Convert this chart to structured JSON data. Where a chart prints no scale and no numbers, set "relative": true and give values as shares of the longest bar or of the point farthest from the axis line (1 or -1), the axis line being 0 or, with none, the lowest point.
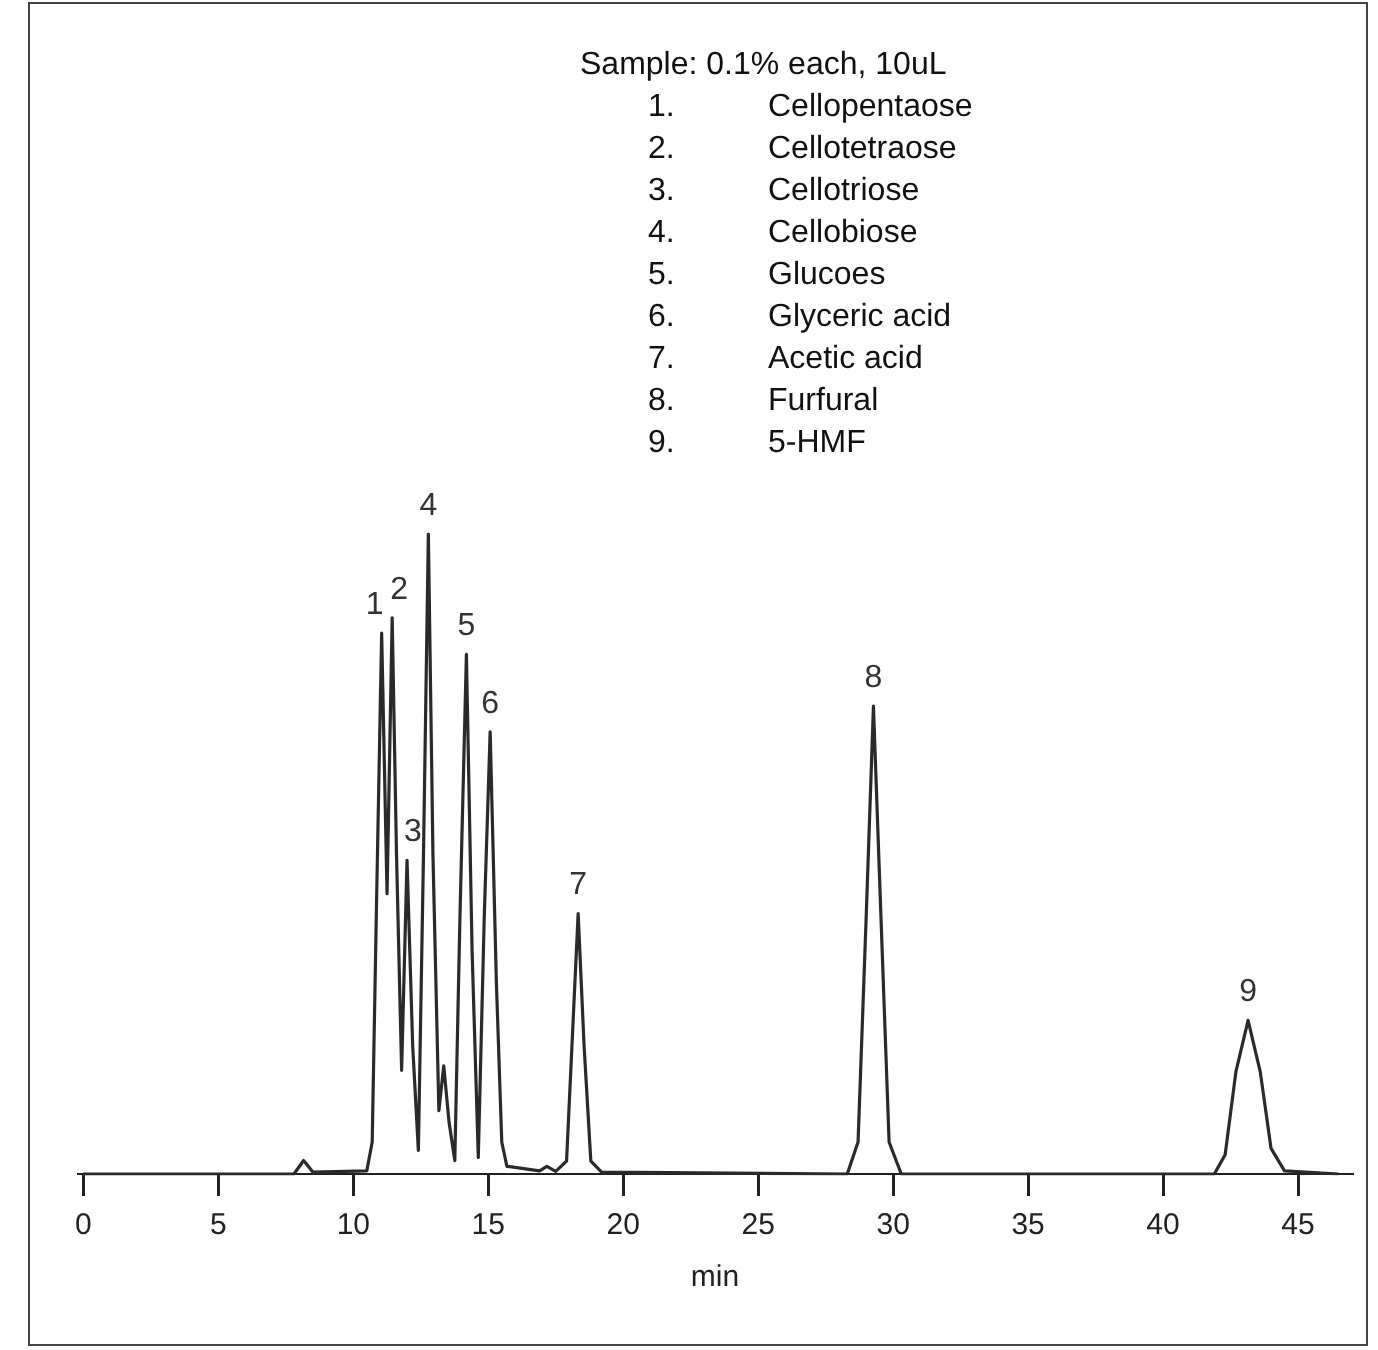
{
  "chart_data": {
    "type": "line",
    "xlabel": "min",
    "relative": true,
    "legend": false,
    "grid": false,
    "tick_labels": "x",
    "marker": "none",
    "line_style": "solid",
    "xlim": [
      -0.2,
      47
    ],
    "xticks": [
      0,
      5,
      10,
      15,
      20,
      25,
      30,
      35,
      40,
      45
    ],
    "series": [
      {
        "color": "#2a2a2a",
        "x": [
          0,
          7.8,
          8.16,
          8.5,
          10.5,
          10.7,
          10.85,
          11.05,
          11.25,
          11.44,
          11.6,
          11.79,
          11.99,
          12.2,
          12.41,
          12.6,
          12.78,
          12.95,
          13.17,
          13.35,
          13.55,
          13.76,
          13.95,
          14.19,
          14.4,
          14.63,
          14.85,
          15.07,
          15.3,
          15.5,
          15.69,
          16.9,
          17.17,
          17.5,
          17.9,
          18.1,
          18.33,
          18.55,
          18.8,
          19.2,
          28.3,
          28.7,
          29.0,
          29.27,
          29.55,
          29.85,
          30.3,
          41.9,
          42.3,
          42.7,
          43.15,
          43.6,
          44.0,
          44.5,
          46.5
        ],
        "values": [
          0,
          0,
          0.021,
          0.003,
          0.005,
          0.05,
          0.4,
          0.845,
          0.438,
          0.869,
          0.5,
          0.162,
          0.49,
          0.2,
          0.037,
          0.5,
          1,
          0.5,
          0.099,
          0.169,
          0.08,
          0.021,
          0.4,
          0.812,
          0.35,
          0.026,
          0.4,
          0.691,
          0.3,
          0.05,
          0.012,
          0.005,
          0.012,
          0.004,
          0.02,
          0.2,
          0.407,
          0.2,
          0.02,
          0.003,
          0,
          0.05,
          0.4,
          0.731,
          0.4,
          0.05,
          0,
          0,
          0.03,
          0.16,
          0.24,
          0.16,
          0.04,
          0.005,
          0
        ]
      }
    ],
    "annotations": [
      "Sample: 0.1% each, 10uL",
      "1. Cellopentaose",
      "2. Cellotetraose",
      "3. Cellotriose",
      "4. Cellobiose",
      "5. Glucoes",
      "6. Glyceric acid",
      "7. Acetic acid",
      "8. Furfural",
      "9. 5-HMF",
      {
        "text": "1",
        "x": 11.05,
        "y": 0.845
      },
      {
        "text": "2",
        "x": 11.44,
        "y": 0.869
      },
      {
        "text": "3",
        "x": 11.99,
        "y": 0.49
      },
      {
        "text": "4",
        "x": 12.78,
        "y": 1
      },
      {
        "text": "5",
        "x": 14.19,
        "y": 0.812
      },
      {
        "text": "6",
        "x": 15.07,
        "y": 0.691
      },
      {
        "text": "7",
        "x": 18.33,
        "y": 0.407
      },
      {
        "text": "8",
        "x": 29.27,
        "y": 0.731
      },
      {
        "text": "9",
        "x": 43.15,
        "y": 0.24
      }
    ]
  }
}
